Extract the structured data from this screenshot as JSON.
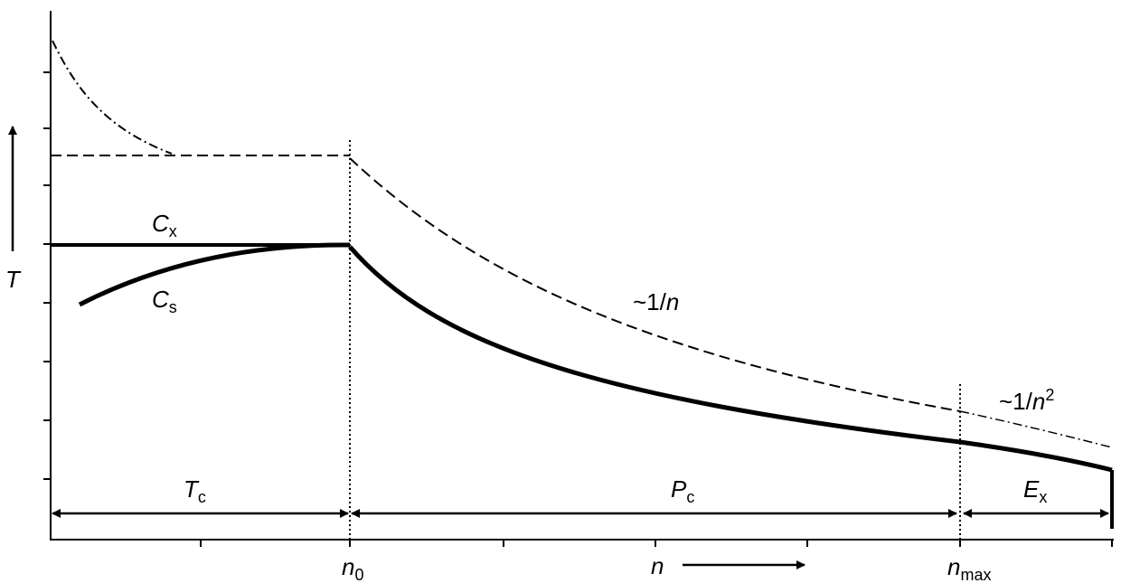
{
  "axis": {
    "y_label": "T",
    "x_label": "n"
  },
  "curves": {
    "cx": {
      "base": "C",
      "sub": "x"
    },
    "cs": {
      "base": "C",
      "sub": "s"
    },
    "inverse_n": {
      "text": "~1/",
      "var": "n"
    },
    "inverse_n2": {
      "text": "~1/",
      "var": "n",
      "power": "2"
    }
  },
  "ticks": {
    "n0": {
      "base": "n",
      "sub": "0"
    },
    "nmax": {
      "base": "n",
      "sub": "max"
    }
  },
  "phases": {
    "tc": {
      "base": "T",
      "sub": "c"
    },
    "pc": {
      "base": "P",
      "sub": "c"
    },
    "ex": {
      "base": "E",
      "sub": "x"
    }
  }
}
